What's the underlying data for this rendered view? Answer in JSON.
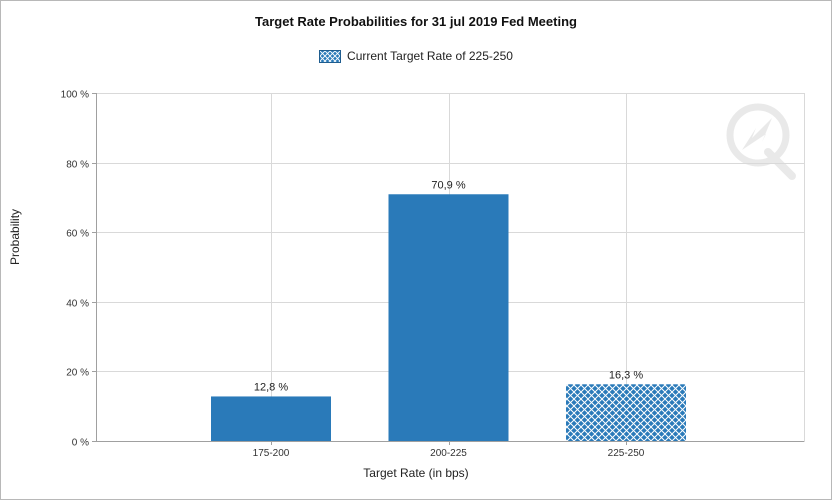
{
  "chart_data": {
    "type": "bar",
    "title": "Target Rate Probabilities for 31 jul 2019 Fed Meeting",
    "xlabel": "Target Rate (in bps)",
    "ylabel": "Probability",
    "categories": [
      "175-200",
      "200-225",
      "225-250"
    ],
    "values": [
      12.8,
      70.9,
      16.3
    ],
    "value_labels": [
      "12,8 %",
      "70,9 %",
      "16,3 %"
    ],
    "hatched": [
      false,
      false,
      true
    ],
    "ylim": [
      0,
      100
    ],
    "yticks": [
      0,
      20,
      40,
      60,
      80,
      100
    ],
    "ytick_labels": [
      "0 %",
      "20 %",
      "40 %",
      "60 %",
      "80 %",
      "100 %"
    ],
    "legend": {
      "label": "Current Target Rate of 225-250",
      "placement": "top-center"
    },
    "grid": true,
    "colors": {
      "bar": "#2a7ab9",
      "hatch": "#ffffff",
      "grid": "#d9d9d9",
      "axis": "#a0a0a0"
    }
  }
}
